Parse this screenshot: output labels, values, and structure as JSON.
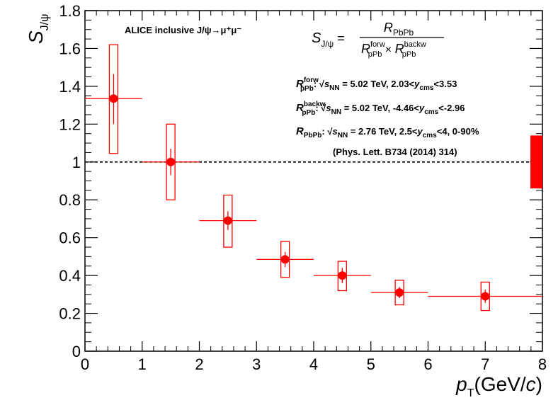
{
  "chart_data": {
    "type": "scatter",
    "title": "ALICE inclusive J/ψ→μ⁺μ⁻",
    "xlabel": "p_T (GeV/c)",
    "ylabel": "S_J/ψ",
    "xlim": [
      0,
      8
    ],
    "ylim": [
      0,
      1.8
    ],
    "x_ticks": [
      "0",
      "1",
      "2",
      "3",
      "4",
      "5",
      "6",
      "7",
      "8"
    ],
    "y_ticks": [
      "0",
      "0.2",
      "0.4",
      "0.6",
      "0.8",
      "1",
      "1.2",
      "1.4",
      "1.6",
      "1.8"
    ],
    "reference_line": 1,
    "global_uncertainty": [
      0.86,
      1.14
    ],
    "series": [
      {
        "name": "S_J/ψ",
        "points": [
          {
            "x": 0.5,
            "y": 1.335,
            "xlow": 0.0,
            "xhigh": 1.0,
            "stat": [
              1.2,
              1.465
            ],
            "syst": [
              1.045,
              1.62
            ]
          },
          {
            "x": 1.5,
            "y": 1.0,
            "xlow": 1.0,
            "xhigh": 2.0,
            "stat": [
              0.93,
              1.07
            ],
            "syst": [
              0.8,
              1.2
            ]
          },
          {
            "x": 2.5,
            "y": 0.69,
            "xlow": 2.0,
            "xhigh": 3.0,
            "stat": [
              0.64,
              0.74
            ],
            "syst": [
              0.55,
              0.825
            ]
          },
          {
            "x": 3.5,
            "y": 0.485,
            "xlow": 3.0,
            "xhigh": 4.0,
            "stat": [
              0.445,
              0.525
            ],
            "syst": [
              0.39,
              0.58
            ]
          },
          {
            "x": 4.5,
            "y": 0.4,
            "xlow": 4.0,
            "xhigh": 5.0,
            "stat": [
              0.36,
              0.44
            ],
            "syst": [
              0.32,
              0.475
            ]
          },
          {
            "x": 5.5,
            "y": 0.31,
            "xlow": 5.0,
            "xhigh": 6.0,
            "stat": [
              0.28,
              0.34
            ],
            "syst": [
              0.245,
              0.375
            ]
          },
          {
            "x": 7.0,
            "y": 0.29,
            "xlow": 6.0,
            "xhigh": 8.0,
            "stat": [
              0.255,
              0.325
            ],
            "syst": [
              0.215,
              0.365
            ]
          }
        ]
      }
    ],
    "color": "#ff0000",
    "annotations": {
      "experiment": "ALICE inclusive J/ψ→μ⁺μ⁻",
      "formula_lhs": "S",
      "formula_lhs_sub": "J/ψ",
      "formula_num": "R",
      "formula_num_sub": "PbPb",
      "formula_den_a": "R",
      "formula_den_a_sup": "forw",
      "formula_den_a_sub": "pPb",
      "formula_den_b": "R",
      "formula_den_b_sup": "backw",
      "formula_den_b_sub": "pPb",
      "line1_sup": "forw",
      "line1_sub": "pPb",
      "line1_text": "= 5.02 TeV, 2.03<",
      "line1_tail": "<3.53",
      "line2_sup": "backw",
      "line2_sub": "pPb",
      "line2_text": "= 5.02 TeV, -4.46<",
      "line2_tail": "<-2.96",
      "line3_sub": "PbPb",
      "line3_text": "= 2.76 TeV, 2.5<",
      "line3_tail": "<4, 0-90%",
      "sqrt_s": "s",
      "sqrt_sub": "NN",
      "y_var": "y",
      "y_sub": "cms",
      "reference": "(Phys. Lett. B734 (2014) 314)"
    }
  }
}
